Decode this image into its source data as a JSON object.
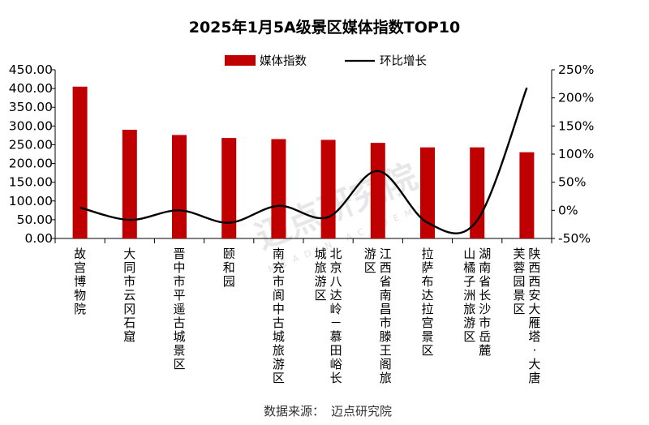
{
  "chart_data": {
    "type": "bar",
    "title": "2025年1月5A级景区媒体指数TOP10",
    "categories": [
      [
        "故宫博物院"
      ],
      [
        "大同市云冈石窟"
      ],
      [
        "晋中市平遥古城景区"
      ],
      [
        "颐和园"
      ],
      [
        "南充市阆中古城旅游区"
      ],
      [
        "北京八达岭－慕田峪长",
        "城旅游区"
      ],
      [
        "江西省南昌市滕王阁旅",
        "游区"
      ],
      [
        "拉萨布达拉宫景区"
      ],
      [
        "湖南省长沙市岳麓",
        "山橘子洲旅游区"
      ],
      [
        "陕西西安大雁塔·大唐",
        "芙蓉园景区"
      ]
    ],
    "series": [
      {
        "name": "媒体指数",
        "type": "bar",
        "axis": "left",
        "color": "#C00000",
        "values": [
          405,
          290,
          276,
          268,
          265,
          263,
          255,
          243,
          243,
          230
        ]
      },
      {
        "name": "环比增长",
        "type": "line",
        "axis": "right",
        "color": "#000000",
        "values": [
          5,
          -17,
          0,
          -22,
          8,
          -12,
          70,
          -22,
          -18,
          218
        ]
      }
    ],
    "y_left": {
      "min": 0,
      "max": 450,
      "ticks": [
        0,
        50,
        100,
        150,
        200,
        250,
        300,
        350,
        400,
        450
      ],
      "tick_labels": [
        "0.00",
        "50.00",
        "100.00",
        "150.00",
        "200.00",
        "250.00",
        "300.00",
        "350.00",
        "400.00",
        "450.00"
      ]
    },
    "y_right": {
      "min": -50,
      "max": 250,
      "ticks": [
        -50,
        0,
        50,
        100,
        150,
        200,
        250
      ],
      "tick_labels": [
        "-50%",
        "0%",
        "50%",
        "100%",
        "150%",
        "200%",
        "250%"
      ]
    },
    "legend": [
      "媒体指数",
      "环比增长"
    ],
    "legend_position": "top-center",
    "grid": false
  },
  "source_label": "数据来源：",
  "source_name": "迈点研究院",
  "watermark": {
    "text": "迈点研究院",
    "subtext": "MEADIN ACADEMY"
  }
}
